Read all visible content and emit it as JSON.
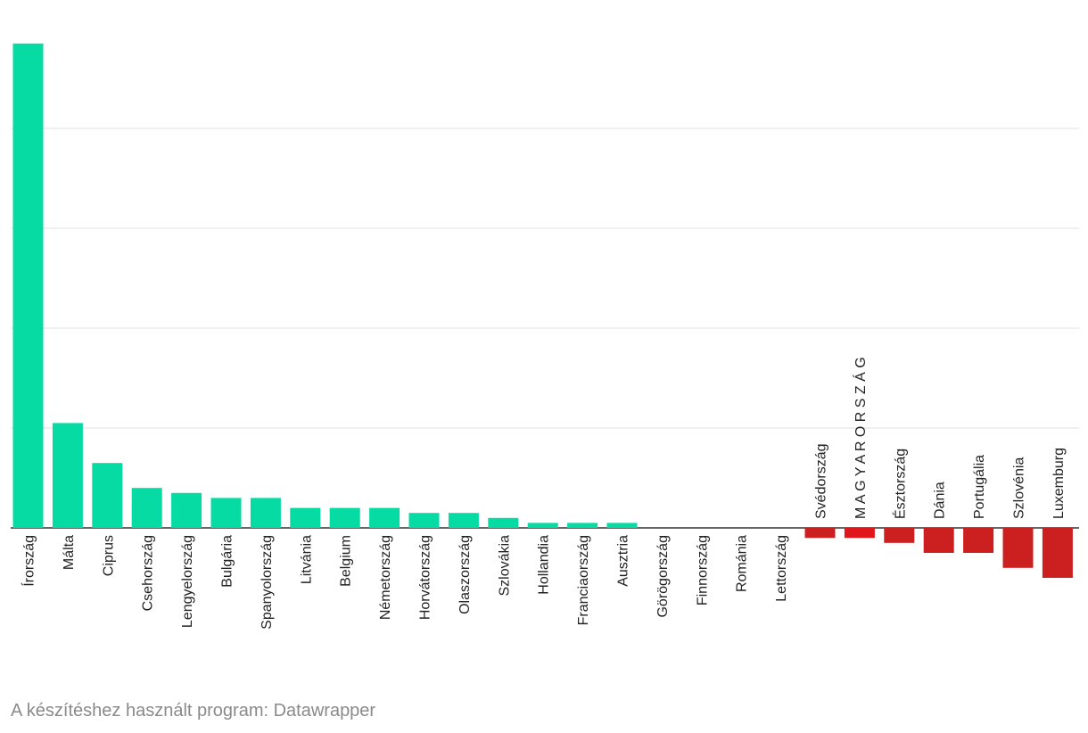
{
  "chart_data": {
    "type": "bar",
    "title": "",
    "xlabel": "",
    "ylabel": "",
    "ylim": [
      -5,
      48.5
    ],
    "grid": true,
    "categories": [
      "Írország",
      "Málta",
      "Ciprus",
      "Csehország",
      "Lengyelország",
      "Bulgária",
      "Spanyolország",
      "Litvánia",
      "Belgium",
      "Németország",
      "Horvátország",
      "Olaszország",
      "Szlovákia",
      "Hollandia",
      "Franciaország",
      "Ausztria",
      "Görögország",
      "Finnország",
      "Románia",
      "Lettország",
      "Svédország",
      "M A G Y A R O R S Z Á G",
      "Észtország",
      "Dánia",
      "Portugália",
      "Szlovénia",
      "Luxemburg"
    ],
    "values": [
      48.5,
      10.5,
      6.5,
      4.0,
      3.5,
      3.0,
      3.0,
      2.0,
      2.0,
      2.0,
      1.5,
      1.5,
      1.0,
      0.5,
      0.5,
      0.5,
      0,
      0,
      0,
      0,
      -1.0,
      -1.0,
      -1.5,
      -2.5,
      -2.5,
      -4.0,
      -5.0
    ],
    "gridlines": [
      10,
      20,
      30,
      40
    ],
    "colors": {
      "positive": "#06dba4",
      "negative": "#cc1f1f",
      "highlight": "#e0161b",
      "grid": "#e2e2e2",
      "baseline": "#333333"
    },
    "highlight_category": "M A G Y A R O R S Z Á G"
  },
  "footer": {
    "credit": "A készítéshez használt program: Datawrapper"
  }
}
